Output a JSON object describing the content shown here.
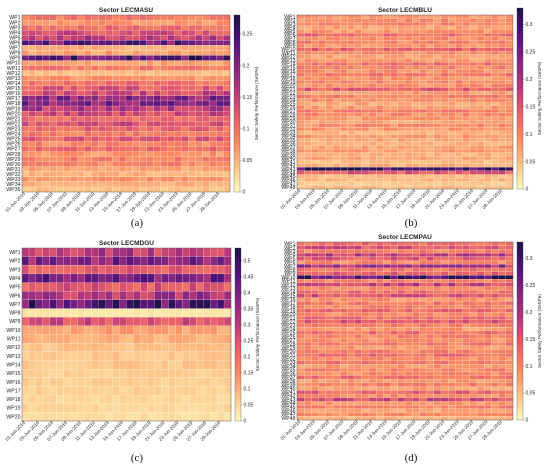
{
  "figure_letters": [
    "(a)",
    "(b)",
    "(c)",
    "(d)"
  ],
  "colormap": [
    "#fcfdbf",
    "#fec287",
    "#fb8761",
    "#e55c6c",
    "#b5367a",
    "#812581",
    "#4f127b",
    "#1d1147"
  ],
  "chart_data": [
    {
      "type": "heatmap",
      "title": "Sector LECMASU",
      "colorbar_label": "Sector Safety Performance (SeSPe)",
      "colorbar_ticks": [
        "0",
        "0.05",
        "0.1",
        "0.15",
        "0.2",
        "0.25"
      ],
      "vmin": 0,
      "vmax": 0.28,
      "row_labels": [
        "WP1",
        "WP2",
        "WP3",
        "WP4",
        "WP5",
        "WP6",
        "WP7",
        "WP8",
        "WP9",
        "WP10",
        "WP11",
        "WP12",
        "WP13",
        "WP14",
        "WP15",
        "WP16",
        "WP17",
        "WP18",
        "WP19",
        "WP20",
        "WP21",
        "WP22",
        "WP23",
        "WP24",
        "WP25",
        "WP26",
        "WP27",
        "WP28",
        "WP29",
        "WP30",
        "WP31",
        "WP32",
        "WP33",
        "WP34",
        "WP35"
      ],
      "row_label_step": 1,
      "column_labels": [
        "01-Jun-2019",
        "03-Jun-2019",
        "05-Jun-2019",
        "07-Jun-2019",
        "09-Jun-2019",
        "11-Jun-2019",
        "13-Jun-2019",
        "15-Jun-2019",
        "17-Jun-2019",
        "19-Jun-2019",
        "21-Jun-2019",
        "23-Jun-2019",
        "25-Jun-2019",
        "27-Jun-2019",
        "29-Jun-2019"
      ],
      "row_base": [
        0.09,
        0.07,
        0.1,
        0.13,
        0.15,
        0.22,
        0.05,
        0.06,
        0.24,
        0.06,
        0.09,
        0.04,
        0.07,
        0.1,
        0.12,
        0.14,
        0.19,
        0.2,
        0.16,
        0.14,
        0.1,
        0.13,
        0.11,
        0.09,
        0.12,
        0.08,
        0.1,
        0.07,
        0.09,
        0.08,
        0.06,
        0.05,
        0.07,
        0.05,
        0.04
      ]
    },
    {
      "type": "heatmap",
      "title": "Sector LECMBLU",
      "colorbar_label": "Sector Safety Performance (SeSPe)",
      "colorbar_ticks": [
        "0",
        "0.05",
        "0.1",
        "0.15",
        "0.2",
        "0.25",
        "0.3"
      ],
      "vmin": 0,
      "vmax": 0.33,
      "row_labels": [
        "WP1",
        "WP2",
        "WP3",
        "WP4",
        "WP5",
        "WP6",
        "WP7",
        "WP8",
        "WP9",
        "WP10",
        "WP11",
        "WP12",
        "WP13",
        "WP14",
        "WP15",
        "WP16",
        "WP17",
        "WP18",
        "WP19",
        "WP20",
        "WP21",
        "WP22",
        "WP23",
        "WP24",
        "WP25",
        "WP26",
        "WP27",
        "WP28",
        "WP29",
        "WP30",
        "WP31",
        "WP32",
        "WP33",
        "WP34",
        "WP35",
        "WP36",
        "WP37",
        "WP38",
        "WP39",
        "WP40",
        "WP41",
        "WP42",
        "WP43",
        "WP44",
        "WP45",
        "WP46",
        "WP47",
        "WP48"
      ],
      "row_label_step": 1,
      "column_labels": [
        "01-Jun-2019",
        "03-Jun-2019",
        "05-Jun-2019",
        "07-Jun-2019",
        "09-Jun-2019",
        "11-Jun-2019",
        "13-Jun-2019",
        "15-Jun-2019",
        "17-Jun-2019",
        "19-Jun-2019",
        "21-Jun-2019",
        "23-Jun-2019",
        "25-Jun-2019",
        "27-Jun-2019",
        "29-Jun-2019"
      ],
      "row_base": [
        0.08,
        0.09,
        0.1,
        0.07,
        0.08,
        0.12,
        0.09,
        0.1,
        0.08,
        0.13,
        0.09,
        0.07,
        0.08,
        0.12,
        0.1,
        0.09,
        0.11,
        0.08,
        0.1,
        0.09,
        0.14,
        0.08,
        0.1,
        0.09,
        0.07,
        0.08,
        0.1,
        0.09,
        0.08,
        0.07,
        0.09,
        0.08,
        0.06,
        0.08,
        0.07,
        0.06,
        0.07,
        0.08,
        0.06,
        0.07,
        0.05,
        0.06,
        0.3,
        0.14,
        0.05,
        0.06,
        0.04,
        0.05
      ]
    },
    {
      "type": "heatmap",
      "title": "Sector LECMDGU",
      "colorbar_label": "Sector Safety Performance (SeSPe)",
      "colorbar_ticks": [
        "0",
        "0.05",
        "0.1",
        "0.15",
        "0.2",
        "0.25",
        "0.3",
        "0.35",
        "0.4",
        "0.45",
        "0.5"
      ],
      "vmin": 0,
      "vmax": 0.54,
      "row_labels": [
        "WP1",
        "WP2",
        "WP3",
        "WP4",
        "WP5",
        "WP6",
        "WP7",
        "WP8",
        "WP9",
        "WP10",
        "WP11",
        "WP12",
        "WP13",
        "WP14",
        "WP15",
        "WP16",
        "WP17",
        "WP18",
        "WP19",
        "WP20"
      ],
      "row_label_step": 1,
      "column_labels": [
        "01-Jun-2019",
        "03-Jun-2019",
        "05-Jun-2019",
        "07-Jun-2019",
        "09-Jun-2019",
        "11-Jun-2019",
        "13-Jun-2019",
        "15-Jun-2019",
        "17-Jun-2019",
        "19-Jun-2019",
        "21-Jun-2019",
        "23-Jun-2019",
        "25-Jun-2019",
        "27-Jun-2019",
        "29-Jun-2019"
      ],
      "row_base": [
        0.3,
        0.38,
        0.22,
        0.4,
        0.24,
        0.32,
        0.44,
        0.03,
        0.26,
        0.12,
        0.1,
        0.08,
        0.07,
        0.07,
        0.06,
        0.06,
        0.06,
        0.05,
        0.05,
        0.04
      ]
    },
    {
      "type": "heatmap",
      "title": "Sector LECMPAU",
      "colorbar_label": "Sector Safety Performance (SeSPe)",
      "colorbar_ticks": [
        "0",
        "0.05",
        "0.1",
        "0.15",
        "0.2",
        "0.25",
        "0.3"
      ],
      "vmin": 0,
      "vmax": 0.33,
      "row_labels": [
        "WP1",
        "WP2",
        "WP3",
        "WP4",
        "WP5",
        "WP6",
        "WP7",
        "WP8",
        "WP9",
        "WP10",
        "WP11",
        "WP12",
        "WP13",
        "WP14",
        "WP15",
        "WP16",
        "WP17",
        "WP18",
        "WP19",
        "WP20",
        "WP21",
        "WP22",
        "WP23",
        "WP24",
        "WP25",
        "WP26",
        "WP27",
        "WP28",
        "WP29",
        "WP30",
        "WP31",
        "WP32",
        "WP33",
        "WP34",
        "WP35",
        "WP36",
        "WP37",
        "WP38",
        "WP39",
        "WP40",
        "WP41",
        "WP42",
        "WP43",
        "WP44",
        "WP45",
        "WP46",
        "WP47",
        "WP48"
      ],
      "row_label_step": 1,
      "column_labels": [
        "01-Jun-2019",
        "03-Jun-2019",
        "05-Jun-2019",
        "07-Jun-2019",
        "09-Jun-2019",
        "11-Jun-2019",
        "13-Jun-2019",
        "15-Jun-2019",
        "17-Jun-2019",
        "19-Jun-2019",
        "21-Jun-2019",
        "23-Jun-2019",
        "25-Jun-2019",
        "27-Jun-2019",
        "29-Jun-2019"
      ],
      "row_base": [
        0.12,
        0.15,
        0.1,
        0.18,
        0.14,
        0.09,
        0.2,
        0.11,
        0.13,
        0.28,
        0.1,
        0.17,
        0.09,
        0.12,
        0.15,
        0.08,
        0.11,
        0.1,
        0.13,
        0.09,
        0.12,
        0.14,
        0.1,
        0.08,
        0.12,
        0.1,
        0.09,
        0.11,
        0.08,
        0.1,
        0.12,
        0.09,
        0.11,
        0.08,
        0.1,
        0.09,
        0.12,
        0.08,
        0.1,
        0.07,
        0.13,
        0.09,
        0.16,
        0.08,
        0.1,
        0.07,
        0.09,
        0.06
      ]
    }
  ]
}
